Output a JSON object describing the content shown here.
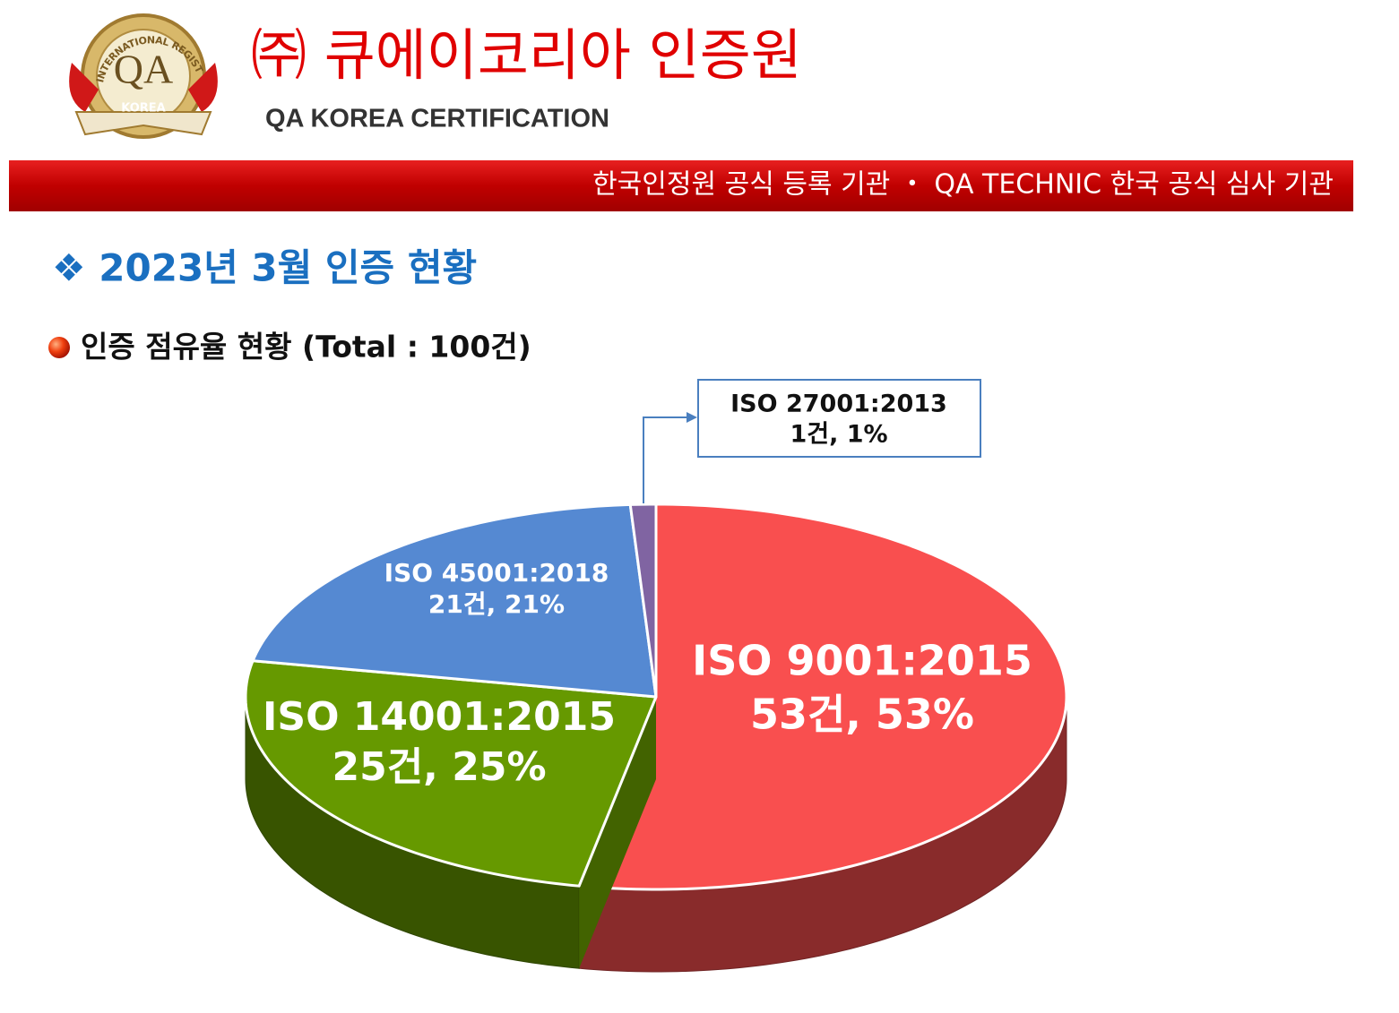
{
  "logo": {
    "ring": "INTERNATIONAL REGISTRAR",
    "mark": "QA",
    "ribbon": "KOREA"
  },
  "header": {
    "title": "㈜ 큐에이코리아 인증원",
    "subtitle": "QA KOREA CERTIFICATION",
    "banner": "한국인정원 공식 등록 기관 ・ QA TECHNIC 한국 공식 심사 기관"
  },
  "section_title": "❖ 2023년 3월 인증 현황",
  "chart_data": {
    "type": "pie",
    "title": "인증 점유율 현황 (Total : 100건)",
    "categories": [
      "ISO 9001:2015",
      "ISO 14001:2015",
      "ISO 45001:2018",
      "ISO 27001:2013"
    ],
    "values": [
      53,
      25,
      21,
      1
    ],
    "value_labels": [
      "53건, 53%",
      "25건, 25%",
      "21건, 21%",
      "1건, 1%"
    ],
    "colors": [
      "#f94f4f",
      "#669900",
      "#5589d2",
      "#8064a2"
    ]
  }
}
